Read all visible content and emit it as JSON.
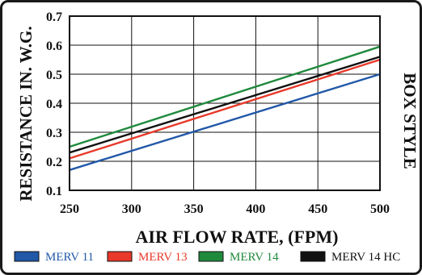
{
  "chart_data": {
    "type": "line",
    "title": "",
    "xlabel": "AIR FLOW RATE, (FPM)",
    "ylabel": "RESISTANCE IN. W.G.",
    "side_label": "BOX STYLE",
    "x": [
      250,
      500
    ],
    "xlim": [
      250,
      500
    ],
    "ylim": [
      0.1,
      0.7
    ],
    "x_ticks": [
      "250",
      "300",
      "350",
      "400",
      "450",
      "500"
    ],
    "y_ticks": [
      "0.1",
      "0.2",
      "0.3",
      "0.4",
      "0.5",
      "0.6",
      "0.7"
    ],
    "grid": true,
    "legend_position": "bottom",
    "series": [
      {
        "name": "MERV 11",
        "color": "#2158a8",
        "values": [
          0.17,
          0.5
        ]
      },
      {
        "name": "MERV 13",
        "color": "#e8392a",
        "values": [
          0.21,
          0.55
        ]
      },
      {
        "name": "MERV 14",
        "color": "#1f8a3c",
        "values": [
          0.25,
          0.595
        ]
      },
      {
        "name": "MERV 14 HC",
        "color": "#111111",
        "values": [
          0.23,
          0.56
        ]
      }
    ]
  }
}
